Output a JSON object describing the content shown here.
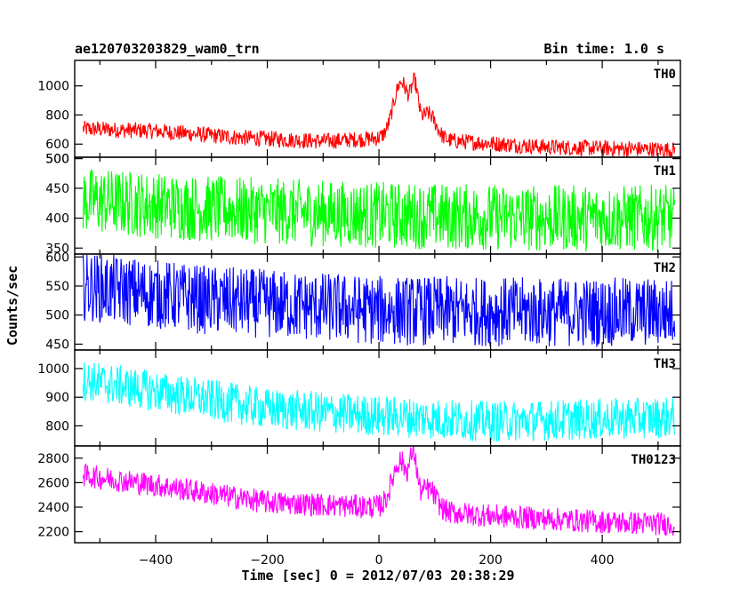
{
  "header": {
    "title": "ae120703203829_wam0_trn",
    "bin_time": "Bin time: 1.0 s"
  },
  "chart_data": {
    "type": "line",
    "xlabel": "Time [sec] 0 = 2012/07/03 20:38:29",
    "ylabel": "Counts/sec",
    "xlim": [
      -545,
      540
    ],
    "xticks": [
      -400,
      -200,
      0,
      200,
      400
    ],
    "grid": false,
    "panels": [
      {
        "name": "TH0",
        "color": "#ff0000",
        "ylim": [
          510,
          1175
        ],
        "yticks": [
          600,
          800,
          1000,
          500
        ],
        "baseline": [
          [
            -530,
            705
          ],
          [
            -400,
            690
          ],
          [
            -250,
            645
          ],
          [
            -100,
            620
          ],
          [
            0,
            640
          ],
          [
            120,
            625
          ],
          [
            300,
            580
          ],
          [
            530,
            560
          ]
        ],
        "noise": 70,
        "features": [
          {
            "x": 40,
            "height": 390,
            "width": 14
          },
          {
            "x": 64,
            "height": 270,
            "width": 6
          },
          {
            "x": 88,
            "height": 180,
            "width": 14
          }
        ]
      },
      {
        "name": "TH1",
        "color": "#00ff00",
        "ylim": [
          340,
          502
        ],
        "yticks": [
          350,
          400,
          450,
          500
        ],
        "baseline": [
          [
            -530,
            430
          ],
          [
            -300,
            415
          ],
          [
            0,
            405
          ],
          [
            300,
            400
          ],
          [
            530,
            400
          ]
        ],
        "noise": 70,
        "features": []
      },
      {
        "name": "TH2",
        "color": "#0000ff",
        "ylim": [
          440,
          605
        ],
        "yticks": [
          450,
          500,
          550,
          600
        ],
        "baseline": [
          [
            -530,
            550
          ],
          [
            -300,
            525
          ],
          [
            0,
            508
          ],
          [
            300,
            505
          ],
          [
            530,
            505
          ]
        ],
        "noise": 75,
        "features": []
      },
      {
        "name": "TH3",
        "color": "#00ffff",
        "ylim": [
          730,
          1065
        ],
        "yticks": [
          800,
          900,
          1000
        ],
        "baseline": [
          [
            -530,
            960
          ],
          [
            -400,
            920
          ],
          [
            -200,
            860
          ],
          [
            0,
            835
          ],
          [
            200,
            815
          ],
          [
            530,
            830
          ]
        ],
        "noise": 90,
        "features": []
      },
      {
        "name": "TH0123",
        "color": "#ff00ff",
        "ylim": [
          2110,
          2900
        ],
        "yticks": [
          2200,
          2400,
          2600,
          2800
        ],
        "baseline": [
          [
            -530,
            2660
          ],
          [
            -400,
            2580
          ],
          [
            -200,
            2440
          ],
          [
            0,
            2400
          ],
          [
            200,
            2330
          ],
          [
            400,
            2280
          ],
          [
            530,
            2260
          ]
        ],
        "noise": 120,
        "features": [
          {
            "x": 38,
            "height": 390,
            "width": 14
          },
          {
            "x": 62,
            "height": 360,
            "width": 6
          },
          {
            "x": 88,
            "height": 180,
            "width": 14
          }
        ]
      }
    ]
  }
}
